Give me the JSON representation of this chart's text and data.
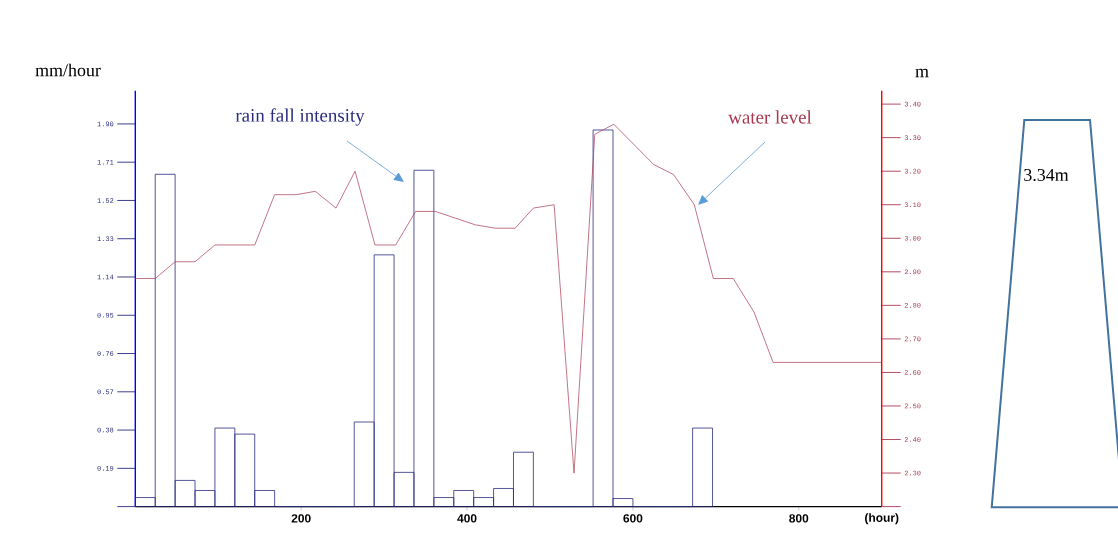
{
  "chart_data": {
    "type": "histogram",
    "ylabel": "mm/hour",
    "y2label": "m",
    "xlabel": "(hour)",
    "annotations": [
      "3.34m"
    ],
    "bins": [
      0,
      24,
      48,
      72,
      96,
      120,
      144,
      168,
      192,
      216,
      240,
      264,
      288,
      312,
      336,
      360,
      384,
      408,
      432,
      456,
      480,
      504,
      528,
      552,
      576,
      600,
      624,
      648,
      672,
      696
    ],
    "series": [
      {
        "name": "rain fall intensity",
        "color": "#2b2b80",
        "values": [
          0.045,
          1.65,
          0.13,
          0.08,
          0.39,
          0.36,
          0.08,
          0,
          0,
          0,
          0,
          0.42,
          1.25,
          0.17,
          1.67,
          0.045,
          0.08,
          0.045,
          0.09,
          0.27,
          0,
          0,
          0,
          1.87,
          0.04,
          0,
          0,
          0,
          0.39
        ]
      },
      {
        "name": "water level",
        "type": "line",
        "axis": "y2",
        "color": "#a83850",
        "x": [
          0,
          24,
          48,
          72,
          96,
          144,
          168,
          194,
          217,
          242,
          265,
          289,
          314,
          338,
          362,
          386,
          410,
          434,
          458,
          480,
          505,
          529,
          554,
          577,
          625,
          649,
          674,
          697,
          721,
          746,
          769,
          900
        ],
        "values": [
          2.88,
          2.88,
          2.93,
          2.93,
          2.98,
          2.98,
          3.13,
          3.13,
          3.14,
          3.09,
          3.2,
          2.98,
          2.98,
          3.08,
          3.08,
          3.06,
          3.04,
          3.03,
          3.03,
          3.09,
          3.1,
          2.3,
          3.31,
          3.34,
          3.22,
          3.19,
          3.1,
          2.88,
          2.88,
          2.78,
          2.63,
          2.63
        ]
      }
    ],
    "xlim": [
      0,
      900
    ],
    "xticks": [
      200,
      400,
      600,
      800
    ],
    "ylim": [
      0,
      2.065
    ],
    "yticks": [
      {
        "value": 0,
        "label": null
      },
      0.19,
      0.38,
      0.57,
      0.76,
      0.95,
      1.14,
      1.33,
      1.52,
      1.71,
      {
        "value": 1.9,
        "label": "1.90"
      }
    ],
    "y2lim": [
      2.2,
      3.44
    ],
    "y2ticks": [
      {
        "value": 2.2,
        "label": null
      },
      {
        "value": 2.3,
        "label": "2.30"
      },
      {
        "value": 2.4,
        "label": "2.40"
      },
      {
        "value": 2.5,
        "label": "2.50"
      },
      {
        "value": 2.6,
        "label": "2.60"
      },
      {
        "value": 2.7,
        "label": "2.70"
      },
      {
        "value": 2.8,
        "label": "2.80"
      },
      {
        "value": 2.9,
        "label": "2.90"
      },
      {
        "value": 3.0,
        "label": "3.00"
      },
      {
        "value": 3.1,
        "label": "3.10"
      },
      {
        "value": 3.2,
        "label": "3.20"
      },
      {
        "value": 3.3,
        "label": "3.30"
      },
      {
        "value": 3.4,
        "label": "3.40"
      }
    ]
  }
}
